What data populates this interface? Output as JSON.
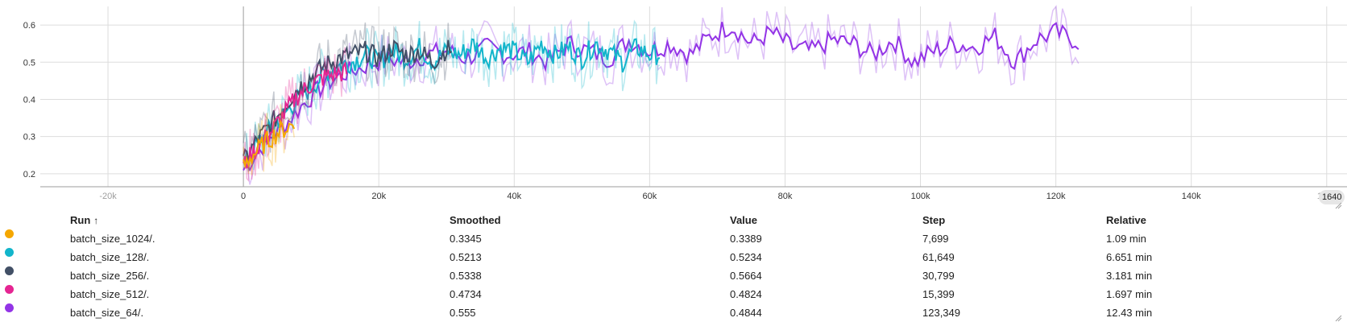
{
  "chart_data": {
    "type": "line",
    "title": "",
    "xlabel": "",
    "ylabel": "",
    "xlim": [
      -30000,
      163000
    ],
    "ylim": [
      0.165,
      0.65
    ],
    "x_ticks": [
      "-20k",
      "0",
      "20k",
      "40k",
      "60k",
      "80k",
      "100k",
      "120k",
      "140k",
      "160k"
    ],
    "x_tick_values": [
      -20000,
      0,
      20000,
      40000,
      60000,
      80000,
      100000,
      120000,
      140000,
      160000
    ],
    "y_ticks": [
      "0.2",
      "0.3",
      "0.4",
      "0.5",
      "0.6"
    ],
    "y_tick_values": [
      0.2,
      0.3,
      0.4,
      0.5,
      0.6
    ],
    "grid": true,
    "series": [
      {
        "name": "batch_size_1024/.",
        "color": "#f5a700",
        "x": [
          0,
          1000,
          2000,
          3000,
          4000,
          5000,
          6000,
          7000,
          7699
        ],
        "y": [
          0.22,
          0.245,
          0.26,
          0.28,
          0.295,
          0.31,
          0.32,
          0.33,
          0.3345
        ]
      },
      {
        "name": "batch_size_128/.",
        "color": "#12b5cb",
        "x": [
          0,
          2000,
          4000,
          6000,
          8000,
          10000,
          12000,
          14000,
          16000,
          18000,
          20000,
          22000,
          24000,
          26000,
          28000,
          30000,
          32000,
          34000,
          36000,
          38000,
          40000,
          42000,
          44000,
          46000,
          48000,
          50000,
          52000,
          54000,
          56000,
          58000,
          60000,
          61649
        ],
        "y": [
          0.22,
          0.28,
          0.32,
          0.36,
          0.4,
          0.43,
          0.47,
          0.49,
          0.5,
          0.52,
          0.5,
          0.53,
          0.51,
          0.54,
          0.5,
          0.53,
          0.52,
          0.55,
          0.51,
          0.54,
          0.53,
          0.5,
          0.55,
          0.52,
          0.54,
          0.51,
          0.55,
          0.53,
          0.5,
          0.54,
          0.52,
          0.5213
        ]
      },
      {
        "name": "batch_size_256/.",
        "color": "#425066",
        "x": [
          0,
          2000,
          4000,
          6000,
          8000,
          10000,
          12000,
          14000,
          16000,
          18000,
          20000,
          22000,
          24000,
          26000,
          28000,
          30000,
          30799
        ],
        "y": [
          0.23,
          0.29,
          0.33,
          0.38,
          0.43,
          0.46,
          0.49,
          0.51,
          0.52,
          0.53,
          0.51,
          0.54,
          0.52,
          0.53,
          0.5,
          0.535,
          0.5338
        ]
      },
      {
        "name": "batch_size_512/.",
        "color": "#e52592",
        "x": [
          0,
          2000,
          4000,
          6000,
          8000,
          10000,
          12000,
          14000,
          15399
        ],
        "y": [
          0.22,
          0.27,
          0.31,
          0.36,
          0.41,
          0.44,
          0.46,
          0.47,
          0.4734
        ]
      },
      {
        "name": "batch_size_64/.",
        "color": "#9334e6",
        "x": [
          0,
          3000,
          6000,
          9000,
          12000,
          15000,
          18000,
          21000,
          24000,
          27000,
          30000,
          33000,
          36000,
          39000,
          42000,
          45000,
          48000,
          51000,
          54000,
          57000,
          60000,
          63000,
          66000,
          69000,
          72000,
          75000,
          78000,
          81000,
          84000,
          87000,
          90000,
          93000,
          96000,
          99000,
          102000,
          105000,
          108000,
          111000,
          114000,
          117000,
          120000,
          123349
        ],
        "y": [
          0.21,
          0.28,
          0.33,
          0.39,
          0.44,
          0.47,
          0.49,
          0.51,
          0.5,
          0.52,
          0.53,
          0.51,
          0.54,
          0.52,
          0.53,
          0.5,
          0.55,
          0.53,
          0.51,
          0.56,
          0.53,
          0.55,
          0.52,
          0.57,
          0.6,
          0.55,
          0.58,
          0.54,
          0.53,
          0.56,
          0.55,
          0.52,
          0.56,
          0.5,
          0.53,
          0.55,
          0.54,
          0.57,
          0.5,
          0.56,
          0.58,
          0.555
        ]
      }
    ]
  },
  "hover_badge": "1640",
  "table": {
    "headers": {
      "run": "Run",
      "sort_indicator": "↑",
      "smoothed": "Smoothed",
      "value": "Value",
      "step": "Step",
      "relative": "Relative"
    },
    "rows": [
      {
        "color": "#f5a700",
        "run": "batch_size_1024/.",
        "smoothed": "0.3345",
        "value": "0.3389",
        "step": "7,699",
        "relative": "1.09 min"
      },
      {
        "color": "#12b5cb",
        "run": "batch_size_128/.",
        "smoothed": "0.5213",
        "value": "0.5234",
        "step": "61,649",
        "relative": "6.651 min"
      },
      {
        "color": "#425066",
        "run": "batch_size_256/.",
        "smoothed": "0.5338",
        "value": "0.5664",
        "step": "30,799",
        "relative": "3.181 min"
      },
      {
        "color": "#e52592",
        "run": "batch_size_512/.",
        "smoothed": "0.4734",
        "value": "0.4824",
        "step": "15,399",
        "relative": "1.697 min"
      },
      {
        "color": "#9334e6",
        "run": "batch_size_64/.",
        "smoothed": "0.555",
        "value": "0.4844",
        "step": "123,349",
        "relative": "12.43 min"
      }
    ]
  }
}
